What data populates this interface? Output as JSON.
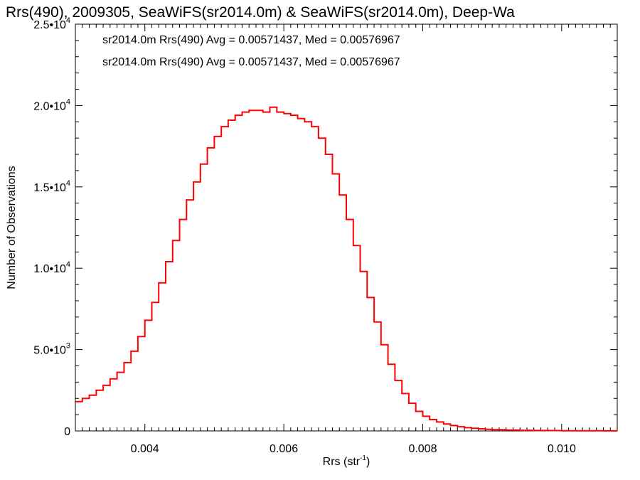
{
  "chart_data": {
    "type": "line",
    "title": "Rrs(490), 2009305, SeaWiFS(sr2014.0m) & SeaWiFS(sr2014.0m), Deep-Wa",
    "xlabel_main": "Rrs (str",
    "xlabel_sup": "-1",
    "xlabel_close": ")",
    "ylabel": "Number of Observations",
    "xlim": [
      0.003,
      0.0108
    ],
    "ylim": [
      0,
      25000
    ],
    "grid": false,
    "x_ticks": [
      {
        "value": 0.004,
        "label": "0.004"
      },
      {
        "value": 0.006,
        "label": "0.006"
      },
      {
        "value": 0.008,
        "label": "0.008"
      },
      {
        "value": 0.01,
        "label": "0.010"
      }
    ],
    "y_ticks": [
      {
        "value": 0,
        "mant": "0",
        "exp": ""
      },
      {
        "value": 5000,
        "mant": "5.0•10",
        "exp": "3"
      },
      {
        "value": 10000,
        "mant": "1.0•10",
        "exp": "4"
      },
      {
        "value": 15000,
        "mant": "1.5•10",
        "exp": "4"
      },
      {
        "value": 20000,
        "mant": "2.0•10",
        "exp": "4"
      },
      {
        "value": 25000,
        "mant": "2.5•10",
        "exp": "4"
      }
    ],
    "annotations": [
      {
        "text": "sr2014.0m Rrs(490) Avg = 0.00571437, Med = 0.00576967",
        "color": "#000000"
      },
      {
        "text": "sr2014.0m Rrs(490) Avg = 0.00571437, Med = 0.00576967",
        "color": "#ff0000"
      }
    ],
    "series": [
      {
        "color": "#ff0000",
        "style": "step",
        "x": [
          0.003,
          0.0031,
          0.0032,
          0.0033,
          0.0034,
          0.0035,
          0.0036,
          0.0037,
          0.0038,
          0.0039,
          0.004,
          0.0041,
          0.0042,
          0.0043,
          0.0044,
          0.0045,
          0.0046,
          0.0047,
          0.0048,
          0.0049,
          0.005,
          0.0051,
          0.0052,
          0.0053,
          0.0054,
          0.0055,
          0.0056,
          0.0057,
          0.0058,
          0.0059,
          0.006,
          0.0061,
          0.0062,
          0.0063,
          0.0064,
          0.0065,
          0.0066,
          0.0067,
          0.0068,
          0.0069,
          0.007,
          0.0071,
          0.0072,
          0.0073,
          0.0074,
          0.0075,
          0.0076,
          0.0077,
          0.0078,
          0.0079,
          0.008,
          0.0081,
          0.0082,
          0.0083,
          0.0084,
          0.0085,
          0.0086,
          0.0087,
          0.0088,
          0.0089,
          0.009,
          0.0092,
          0.0094,
          0.0096,
          0.0098,
          0.01,
          0.0102,
          0.0104,
          0.0106,
          0.0108
        ],
        "y": [
          1800,
          2000,
          2200,
          2500,
          2800,
          3200,
          3600,
          4200,
          4900,
          5800,
          6800,
          7900,
          9100,
          10400,
          11700,
          13000,
          14200,
          15300,
          16400,
          17400,
          18100,
          18700,
          19100,
          19400,
          19600,
          19700,
          19700,
          19600,
          19900,
          19600,
          19500,
          19400,
          19200,
          19000,
          18700,
          18000,
          17000,
          15800,
          14500,
          13000,
          11400,
          9800,
          8200,
          6700,
          5300,
          4100,
          3100,
          2300,
          1700,
          1200,
          900,
          700,
          550,
          430,
          330,
          260,
          200,
          160,
          130,
          100,
          80,
          55,
          40,
          28,
          20,
          14,
          10,
          7,
          5,
          4
        ]
      }
    ]
  }
}
